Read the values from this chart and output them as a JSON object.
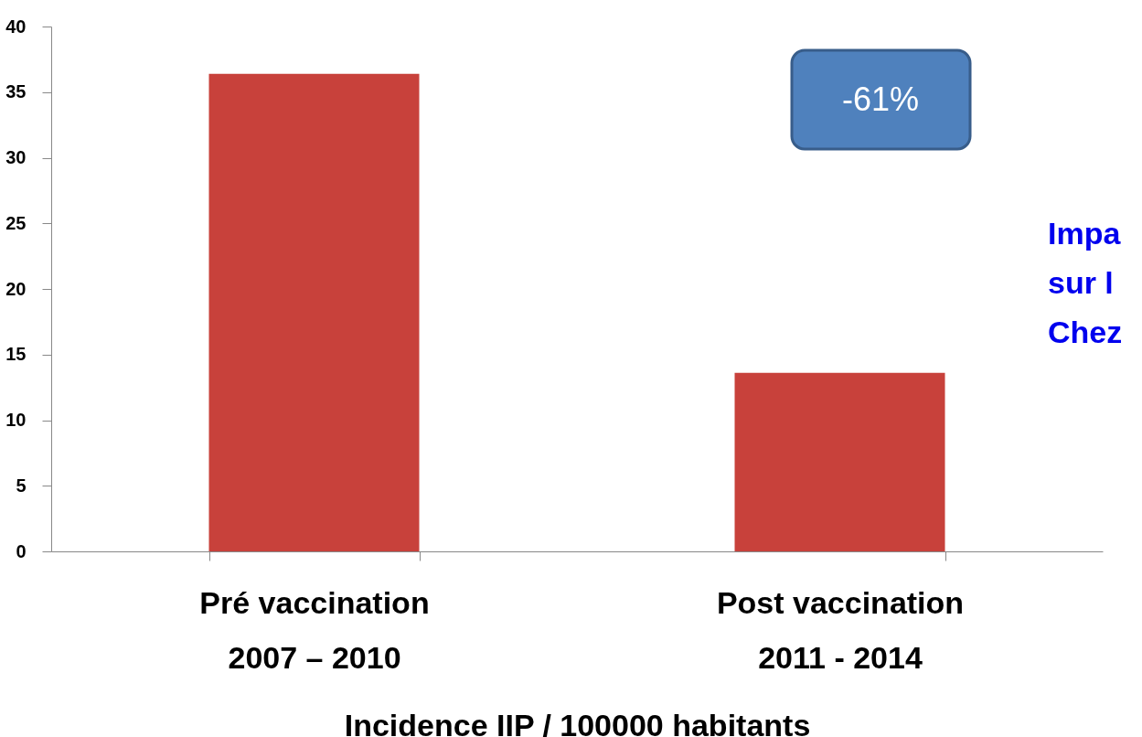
{
  "chart_data": {
    "type": "bar",
    "categories": [
      "Pré vaccination\n2007 – 2010",
      "Post vaccination\n2011 - 2014"
    ],
    "values": [
      36.4,
      13.6
    ],
    "color": "#c8413b",
    "ylim": [
      0,
      40
    ],
    "yticks": [
      0,
      5,
      10,
      15,
      20,
      25,
      30,
      35,
      40
    ],
    "grid": false,
    "xlabel": "Incidence IIP / 100000 habitants",
    "annotations": [
      "-61%",
      "Impa\nsur l\nChez"
    ]
  }
}
